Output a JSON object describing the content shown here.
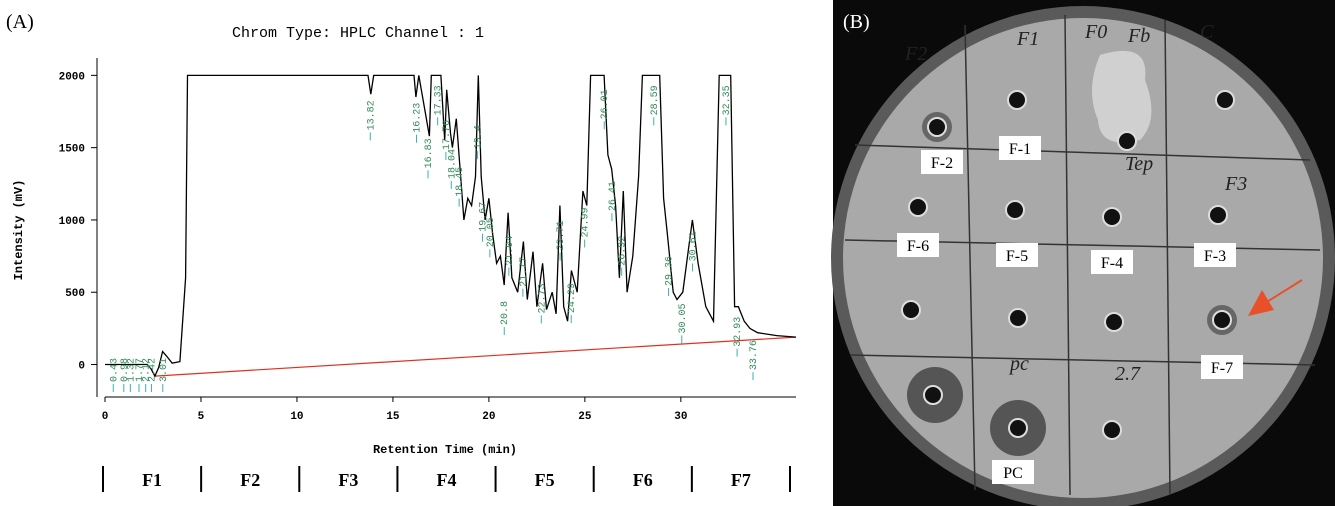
{
  "chart_data": {
    "type": "line",
    "panel_label": "(A)",
    "title": "Chrom Type: HPLC Channel : 1",
    "x_label": "Retention Time (min)",
    "y_label": "Intensity (mV)",
    "xlim": [
      0,
      36
    ],
    "ylim": [
      -190,
      2120
    ],
    "xticks": [
      0,
      5,
      10,
      15,
      20,
      25,
      30
    ],
    "yticks": [
      0,
      500,
      1000,
      1500,
      2000
    ],
    "color": "#000000",
    "x": [
      0,
      1,
      2.2,
      2.4,
      2.6,
      2.8,
      3.0,
      3.2,
      3.5,
      3.9,
      4.2,
      4.3,
      13.7,
      13.85,
      14.0,
      16.1,
      16.2,
      16.35,
      16.9,
      17.0,
      17.5,
      17.7,
      17.8,
      18.0,
      18.1,
      18.3,
      18.5,
      18.7,
      18.9,
      19.1,
      19.3,
      19.45,
      19.6,
      19.8,
      20.0,
      20.2,
      20.4,
      20.6,
      20.8,
      21.0,
      21.2,
      21.5,
      21.8,
      22.0,
      22.3,
      22.5,
      22.8,
      23.0,
      23.3,
      23.5,
      23.7,
      23.9,
      24.1,
      24.3,
      24.6,
      24.9,
      25.1,
      25.3,
      26.0,
      26.2,
      26.4,
      26.6,
      26.8,
      27.0,
      27.2,
      27.5,
      27.8,
      28.0,
      28.9,
      29.1,
      29.3,
      29.6,
      29.8,
      30.1,
      30.4,
      30.6,
      30.9,
      31.3,
      31.7,
      32.0,
      32.6,
      32.8,
      33.0,
      33.3,
      33.6,
      34.0,
      35.0,
      36.0
    ],
    "values": [
      0,
      0,
      0,
      -30,
      -80,
      -20,
      90,
      60,
      10,
      20,
      600,
      2000,
      2000,
      1870,
      2000,
      2000,
      1850,
      2000,
      1580,
      2000,
      2000,
      1550,
      1900,
      1600,
      1500,
      1700,
      1350,
      1000,
      1150,
      1100,
      1300,
      2000,
      1300,
      1000,
      1150,
      900,
      700,
      750,
      550,
      1050,
      600,
      500,
      850,
      450,
      780,
      400,
      700,
      380,
      500,
      350,
      1100,
      400,
      300,
      650,
      500,
      1200,
      1100,
      2000,
      2000,
      1450,
      1350,
      1100,
      600,
      1200,
      500,
      750,
      1300,
      2000,
      2000,
      1150,
      900,
      500,
      450,
      500,
      800,
      1000,
      700,
      400,
      300,
      2000,
      2000,
      400,
      400,
      300,
      250,
      220,
      200,
      190
    ],
    "baseline": {
      "color": "#e0301e",
      "x": [
        2.6,
        36
      ],
      "values": [
        -80,
        190
      ]
    },
    "peak_color": "#2e8b57",
    "peak_labels": [
      0.43,
      0.98,
      1.32,
      1.77,
      2.12,
      2.42,
      3.01,
      13.82,
      16.23,
      16.83,
      17.33,
      17.76,
      18.04,
      18.45,
      19.4,
      19.67,
      20.05,
      20.8,
      21.04,
      21.77,
      22.73,
      23.71,
      24.29,
      24.99,
      26.01,
      26.41,
      26.92,
      28.59,
      29.36,
      30.05,
      30.61,
      32.35,
      32.93,
      33.76
    ],
    "fractions": [
      "F1",
      "F2",
      "F3",
      "F4",
      "F5",
      "F6",
      "F7"
    ]
  },
  "plate": {
    "panel_label": "(B)",
    "well_labels": [
      "F-2",
      "F-1",
      "F-6",
      "F-5",
      "F-4",
      "F-3",
      "F-7",
      "PC"
    ],
    "handwriting": [
      "F2",
      "F1",
      "F0",
      "Fb",
      "C",
      "Tep",
      "F3",
      "pc",
      "2.7"
    ]
  }
}
